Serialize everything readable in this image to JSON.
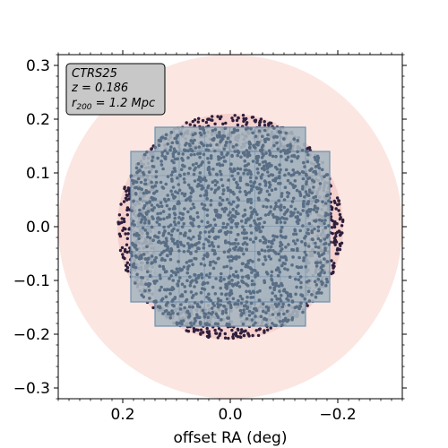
{
  "chart_data": {
    "type": "scatter",
    "title": "",
    "xlabel": "offset RA (deg)",
    "ylabel": "",
    "xlim": [
      0.32,
      -0.32
    ],
    "ylim": [
      -0.32,
      0.32
    ],
    "x_inverted": true,
    "xticks": [
      0.2,
      0.0,
      -0.2
    ],
    "xtick_labels": [
      "0.2",
      "0.0",
      "−0.2"
    ],
    "yticks": [
      0.3,
      0.2,
      0.1,
      0.0,
      -0.1,
      -0.2,
      -0.3
    ],
    "ytick_labels": [
      "0.3",
      "0.2",
      "0.1",
      "0.0",
      "−0.1",
      "−0.2",
      "−0.3"
    ],
    "minor_tick_step": 0.02,
    "grid": false,
    "annotation": {
      "line1": "CTRS25",
      "line2": "z = 0.186",
      "line3_prefix": "r",
      "line3_sub": "200",
      "line3_suffix": " = 1.2 Mpc",
      "position": "top-left"
    },
    "regions": [
      {
        "name": "outer-circle",
        "shape": "circle",
        "center": [
          0.0,
          0.0
        ],
        "radius": 0.32,
        "color": "#fbe6e1"
      },
      {
        "name": "target-circle",
        "shape": "circle",
        "center": [
          0.0,
          0.0
        ],
        "radius": 0.21,
        "color": "#f6d0cc"
      },
      {
        "name": "core-circle",
        "shape": "circle",
        "center": [
          0.0,
          0.0
        ],
        "radius": 0.105,
        "color": "#b58fb0"
      }
    ],
    "footprint": {
      "rects": [
        {
          "x": [
            0.14,
            -0.14
          ],
          "y": [
            -0.185,
            0.185
          ]
        },
        {
          "x": [
            0.185,
            -0.185
          ],
          "y": [
            -0.14,
            0.14
          ]
        }
      ],
      "grid_step": 0.047,
      "fill": "#a9b6c0",
      "edge": "#6f8fae"
    },
    "series": [
      {
        "role": "all-targets",
        "shape": "disk",
        "radius_deg": 0.21,
        "n_points": 2600,
        "color": "#2d1f3d"
      },
      {
        "role": "observed",
        "shape": "footprint",
        "n_points": 1700,
        "color": "#596e85"
      }
    ],
    "colors": {
      "background": "#ffffff",
      "annotation_box": "#c8c8c8",
      "annotation_edge": "#000000"
    }
  }
}
